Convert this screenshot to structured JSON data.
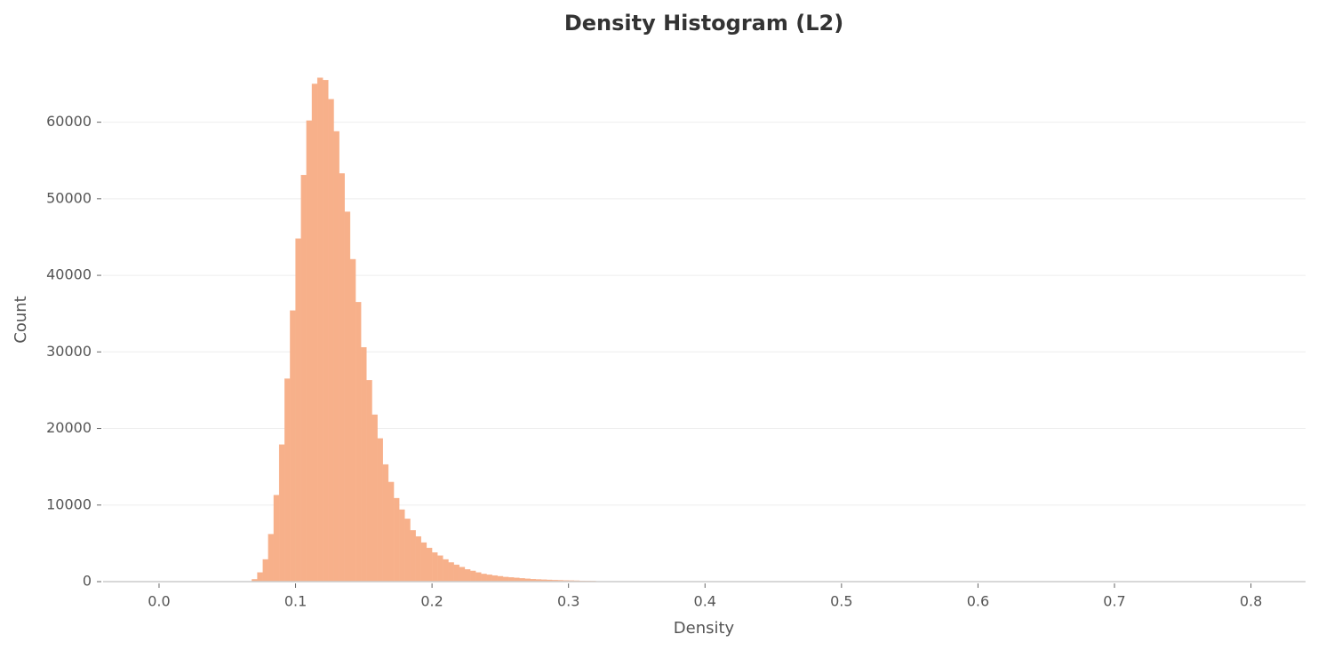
{
  "chart_data": {
    "type": "histogram",
    "title": "Density Histogram (L2)",
    "x_label": "Density",
    "y_label": "Count",
    "color": "#f7b08a",
    "bins": [
      0.068,
      0.072,
      0.076,
      0.08,
      0.084,
      0.088,
      0.092,
      0.096,
      0.1,
      0.104,
      0.108,
      0.112,
      0.116,
      0.12,
      0.124,
      0.128,
      0.132,
      0.136,
      0.14,
      0.144,
      0.148,
      0.152,
      0.156,
      0.16,
      0.164,
      0.168,
      0.172,
      0.176,
      0.18,
      0.184,
      0.188,
      0.192,
      0.196,
      0.2,
      0.204,
      0.208,
      0.212,
      0.216,
      0.22,
      0.224,
      0.228,
      0.232,
      0.236,
      0.24,
      0.244,
      0.248,
      0.252,
      0.256,
      0.26,
      0.264,
      0.268,
      0.272,
      0.276,
      0.28,
      0.284,
      0.288,
      0.292,
      0.296,
      0.3,
      0.304,
      0.308,
      0.312,
      0.316,
      0.32
    ],
    "counts": [
      300,
      1200,
      2900,
      6200,
      11300,
      17900,
      26500,
      35400,
      44800,
      53100,
      60200,
      65000,
      65800,
      65500,
      63000,
      58800,
      53300,
      48300,
      42100,
      36500,
      30600,
      26300,
      21800,
      18700,
      15300,
      13000,
      10900,
      9400,
      8200,
      6700,
      5900,
      5100,
      4400,
      3800,
      3400,
      2900,
      2500,
      2200,
      1900,
      1600,
      1400,
      1200,
      1000,
      900,
      800,
      700,
      600,
      550,
      500,
      430,
      380,
      330,
      290,
      260,
      230,
      200,
      180,
      160,
      140,
      120,
      100,
      90,
      80
    ],
    "xlim": [
      -0.041,
      0.84
    ],
    "ylim": [
      0,
      69000
    ],
    "xticks": [
      {
        "value": 0,
        "label": "0.0"
      },
      0.1,
      0.2,
      0.3,
      0.4,
      0.5,
      0.6,
      0.7,
      0.8
    ],
    "yticks": [
      0,
      10000,
      20000,
      30000,
      40000,
      50000,
      60000
    ],
    "grid": true
  }
}
